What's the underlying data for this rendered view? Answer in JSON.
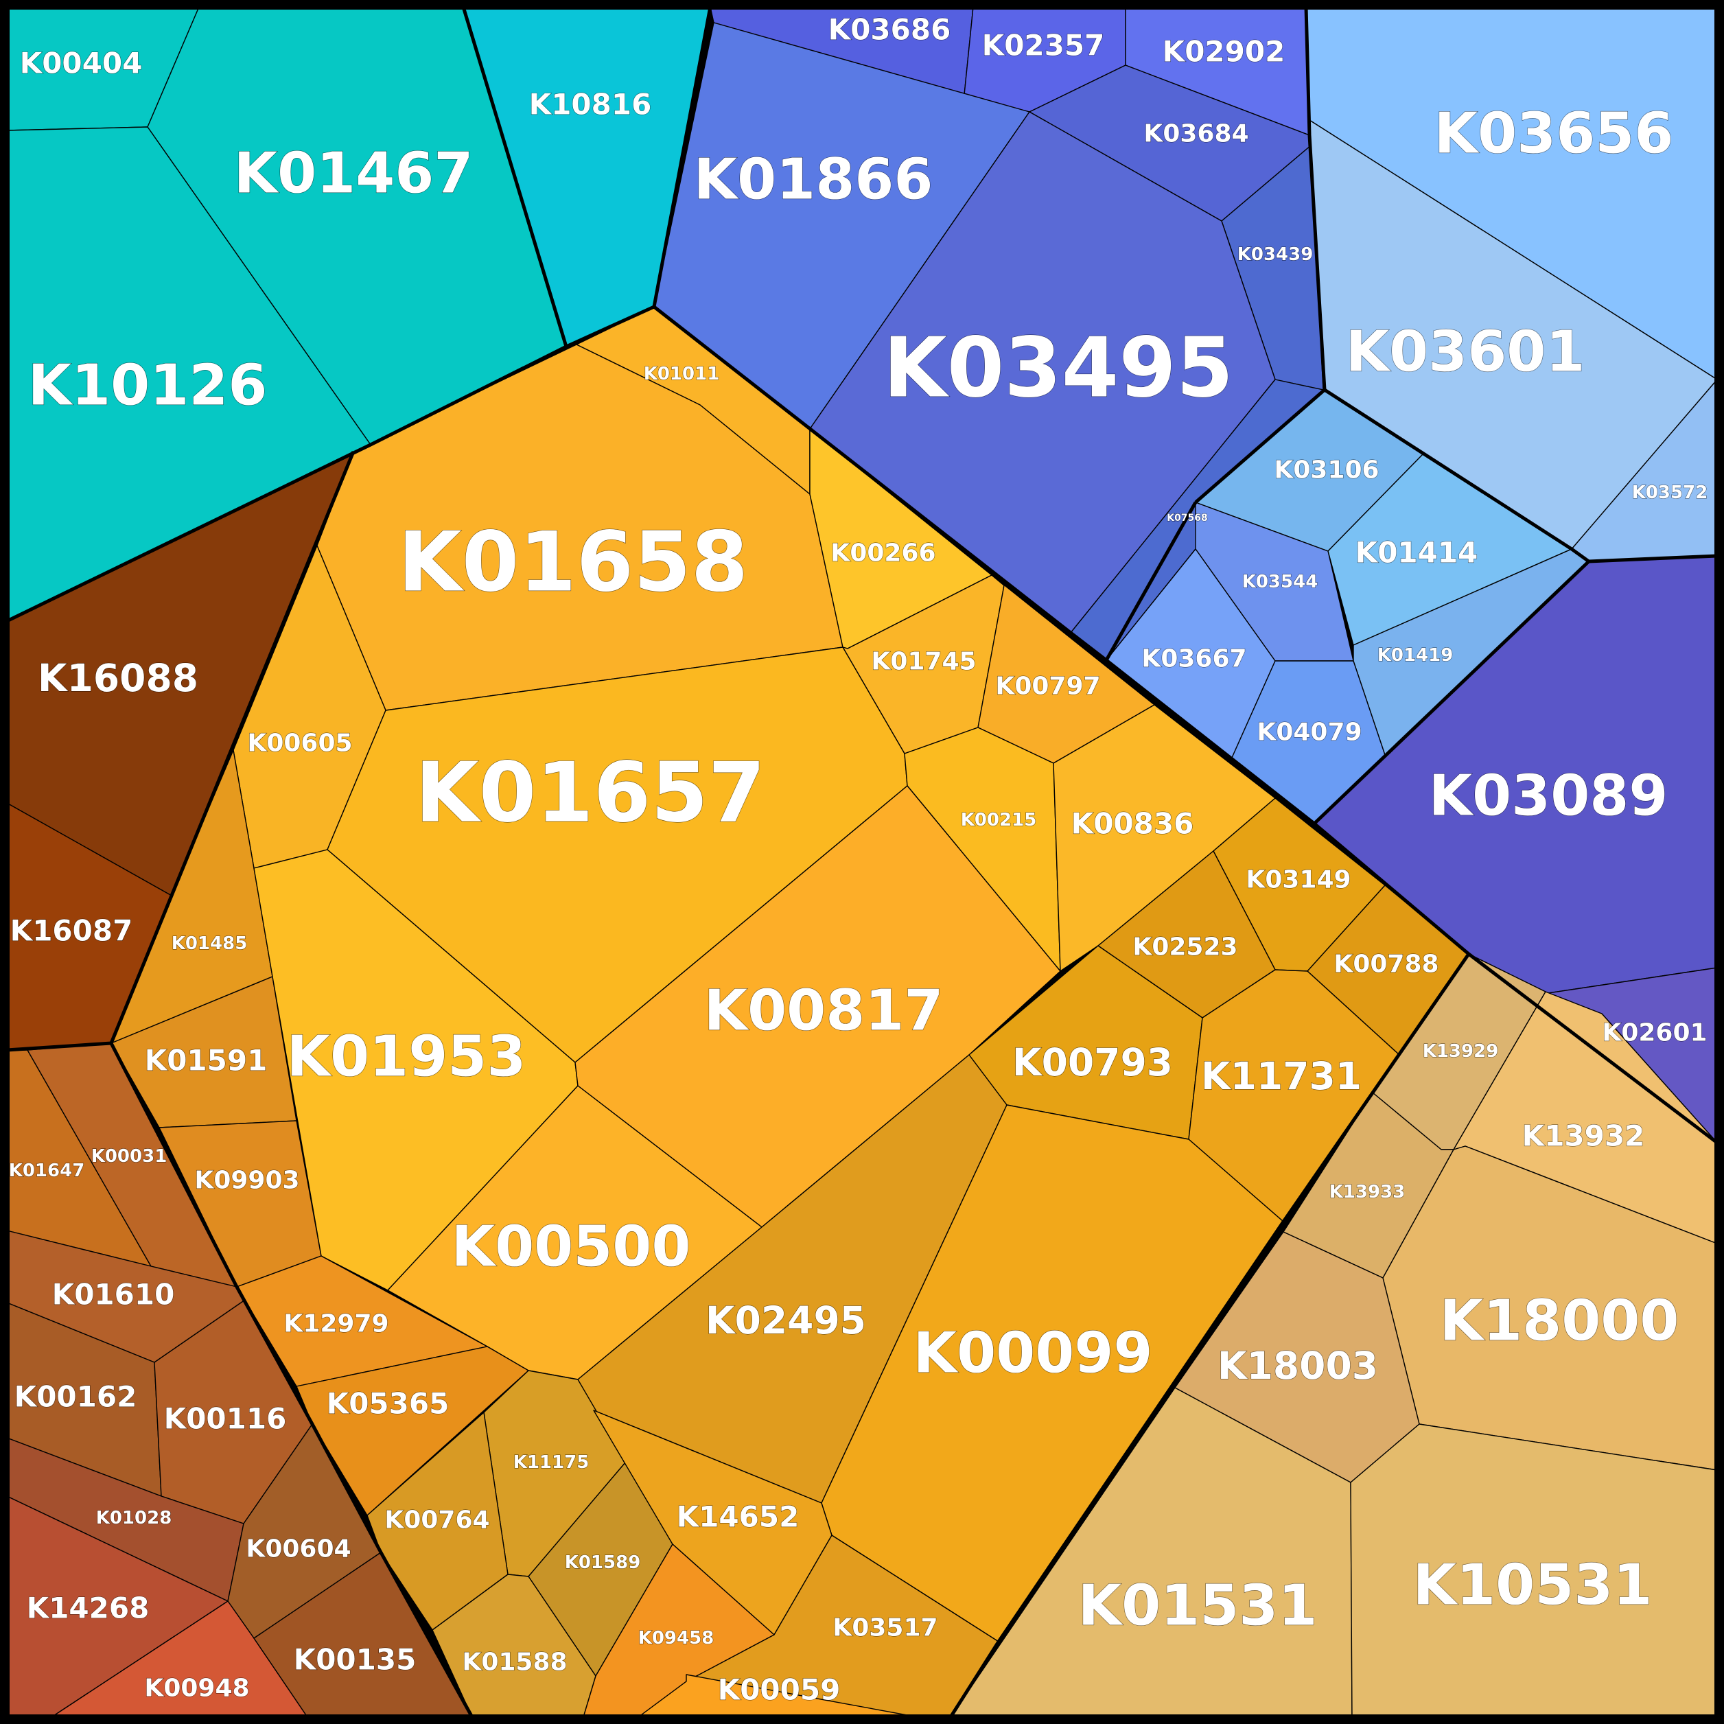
{
  "chart_data": {
    "type": "voronoi-treemap",
    "groups": [
      {
        "name": "group-teal",
        "color": "#06c8c4",
        "items": [
          "K00404",
          "K01467",
          "K10126",
          "K10816"
        ]
      },
      {
        "name": "group-blue",
        "color": "#5a73e2",
        "items": [
          "K03686",
          "K02357",
          "K02902",
          "K01866",
          "K03684",
          "K03439",
          "K03495",
          "K07568"
        ]
      },
      {
        "name": "group-lightblue",
        "color": "#8ac1f8",
        "items": [
          "K03656",
          "K03601",
          "K03572",
          "K03106",
          "K01414",
          "K03544",
          "K01419",
          "K03667",
          "K04079"
        ]
      },
      {
        "name": "group-indigo",
        "color": "#5a56c8",
        "items": [
          "K03089",
          "K02601"
        ]
      },
      {
        "name": "group-brown",
        "color": "#8a3d0a",
        "items": [
          "K16088",
          "K16087"
        ]
      },
      {
        "name": "group-rust",
        "color": "#b8641e",
        "items": [
          "K01647",
          "K00031",
          "K01610",
          "K00162",
          "K00116",
          "K01028",
          "K00604",
          "K14268",
          "K00948",
          "K00135"
        ]
      },
      {
        "name": "group-orange",
        "color": "#fbb424",
        "items": [
          "K01011",
          "K01658",
          "K00266",
          "K01745",
          "K00797",
          "K00605",
          "K01657",
          "K00215",
          "K00836",
          "K01485",
          "K01591",
          "K09903",
          "K01953",
          "K00817",
          "K00500",
          "K03149",
          "K02523",
          "K00788",
          "K00793",
          "K11731",
          "K12979",
          "K05365",
          "K02495",
          "K00099",
          "K11175",
          "K00764",
          "K01589",
          "K14652",
          "K01588",
          "K09458",
          "K03517",
          "K00059"
        ]
      },
      {
        "name": "group-tan",
        "color": "#e4bb6a",
        "items": [
          "K13929",
          "K13932",
          "K13933",
          "K18000",
          "K18003",
          "K01531",
          "K10531"
        ]
      }
    ],
    "cells": [
      {
        "id": "K00404",
        "color": "#06c8c4",
        "size": "s"
      },
      {
        "id": "K01467",
        "color": "#06c8c4",
        "size": "l"
      },
      {
        "id": "K10126",
        "color": "#06c8c4",
        "size": "l"
      },
      {
        "id": "K10816",
        "color": "#0ac5d8",
        "size": "s"
      },
      {
        "id": "K03686",
        "color": "#5560e0",
        "size": "s"
      },
      {
        "id": "K02357",
        "color": "#5b65e8",
        "size": "s"
      },
      {
        "id": "K02902",
        "color": "#6272ef",
        "size": "s"
      },
      {
        "id": "K01866",
        "color": "#5a7ae4",
        "size": "l"
      },
      {
        "id": "K03684",
        "color": "#5565d5",
        "size": "xs"
      },
      {
        "id": "K03439",
        "color": "#4e6ad0",
        "size": "xxs"
      },
      {
        "id": "K03495",
        "color": "#5a6ad6",
        "size": "xl"
      },
      {
        "id": "K07568",
        "color": "#4d6bd0",
        "size": "tiny"
      },
      {
        "id": "K03656",
        "color": "#88c2ff",
        "size": "l"
      },
      {
        "id": "K03601",
        "color": "#9ec8f4",
        "size": "l"
      },
      {
        "id": "K03572",
        "color": "#92bff4",
        "size": "xxs"
      },
      {
        "id": "K03106",
        "color": "#76b6ee",
        "size": "xs"
      },
      {
        "id": "K01414",
        "color": "#7ac1f4",
        "size": "s"
      },
      {
        "id": "K03544",
        "color": "#6e92ee",
        "size": "xxs"
      },
      {
        "id": "K01419",
        "color": "#7ab2ee",
        "size": "xxs"
      },
      {
        "id": "K03667",
        "color": "#76a2f8",
        "size": "xs"
      },
      {
        "id": "K04079",
        "color": "#6a9cf4",
        "size": "xs"
      },
      {
        "id": "K03089",
        "color": "#5a56c8",
        "size": "l"
      },
      {
        "id": "K02601",
        "color": "#6458c4",
        "size": "xs"
      },
      {
        "id": "K16088",
        "color": "#873b0a",
        "size": "m"
      },
      {
        "id": "K16087",
        "color": "#9a4008",
        "size": "s"
      },
      {
        "id": "K01647",
        "color": "#c8701e",
        "size": "xxs"
      },
      {
        "id": "K00031",
        "color": "#bc6626",
        "size": "xxs"
      },
      {
        "id": "K01610",
        "color": "#b4602a",
        "size": "s"
      },
      {
        "id": "K00162",
        "color": "#a85c26",
        "size": "s"
      },
      {
        "id": "K00116",
        "color": "#b25e28",
        "size": "s"
      },
      {
        "id": "K01028",
        "color": "#a4502e",
        "size": "xxs"
      },
      {
        "id": "K00604",
        "color": "#a25e28",
        "size": "xs"
      },
      {
        "id": "K14268",
        "color": "#b84f32",
        "size": "s"
      },
      {
        "id": "K00948",
        "color": "#d45835",
        "size": "xs"
      },
      {
        "id": "K00135",
        "color": "#a05524",
        "size": "s"
      },
      {
        "id": "K01011",
        "color": "#fbb428",
        "size": "xxs"
      },
      {
        "id": "K01658",
        "color": "#fbb128",
        "size": "xl"
      },
      {
        "id": "K00266",
        "color": "#fec52a",
        "size": "xs"
      },
      {
        "id": "K01745",
        "color": "#fab528",
        "size": "xs"
      },
      {
        "id": "K00797",
        "color": "#f9ad28",
        "size": "xs"
      },
      {
        "id": "K00605",
        "color": "#f9b425",
        "size": "xs"
      },
      {
        "id": "K01657",
        "color": "#fbb820",
        "size": "xl"
      },
      {
        "id": "K00215",
        "color": "#fbbb20",
        "size": "xxs"
      },
      {
        "id": "K00836",
        "color": "#fbb828",
        "size": "s"
      },
      {
        "id": "K01485",
        "color": "#e69a1e",
        "size": "xxs"
      },
      {
        "id": "K01591",
        "color": "#e09120",
        "size": "s"
      },
      {
        "id": "K09903",
        "color": "#e08c20",
        "size": "xs"
      },
      {
        "id": "K01953",
        "color": "#fdbe24",
        "size": "l"
      },
      {
        "id": "K00817",
        "color": "#fdae28",
        "size": "l"
      },
      {
        "id": "K00500",
        "color": "#fdb328",
        "size": "l"
      },
      {
        "id": "K03149",
        "color": "#e6a214",
        "size": "xs"
      },
      {
        "id": "K02523",
        "color": "#e09a14",
        "size": "xs"
      },
      {
        "id": "K00788",
        "color": "#e09a14",
        "size": "xs"
      },
      {
        "id": "K00793",
        "color": "#e6a214",
        "size": "m"
      },
      {
        "id": "K11731",
        "color": "#eda41a",
        "size": "m"
      },
      {
        "id": "K12979",
        "color": "#ee9420",
        "size": "xs"
      },
      {
        "id": "K05365",
        "color": "#e8901a",
        "size": "s"
      },
      {
        "id": "K02495",
        "color": "#e09c1e",
        "size": "m"
      },
      {
        "id": "K00099",
        "color": "#f2a81a",
        "size": "l"
      },
      {
        "id": "K11175",
        "color": "#d89e26",
        "size": "xxs"
      },
      {
        "id": "K00764",
        "color": "#d89a24",
        "size": "xs"
      },
      {
        "id": "K01589",
        "color": "#c89428",
        "size": "xxs"
      },
      {
        "id": "K14652",
        "color": "#eda41e",
        "size": "s"
      },
      {
        "id": "K01588",
        "color": "#d8a030",
        "size": "xs"
      },
      {
        "id": "K09458",
        "color": "#f39420",
        "size": "xxs"
      },
      {
        "id": "K03517",
        "color": "#e29c1e",
        "size": "xs"
      },
      {
        "id": "K00059",
        "color": "#fba21f",
        "size": "s"
      },
      {
        "id": "K13929",
        "color": "#dcb470",
        "size": "xxs"
      },
      {
        "id": "K13932",
        "color": "#f0c070",
        "size": "s"
      },
      {
        "id": "K13933",
        "color": "#dcb068",
        "size": "xxs"
      },
      {
        "id": "K18000",
        "color": "#e8b868",
        "size": "l"
      },
      {
        "id": "K18003",
        "color": "#dcac6a",
        "size": "m"
      },
      {
        "id": "K01531",
        "color": "#e4bb6c",
        "size": "l"
      },
      {
        "id": "K10531",
        "color": "#e4bb6c",
        "size": "l"
      }
    ]
  }
}
